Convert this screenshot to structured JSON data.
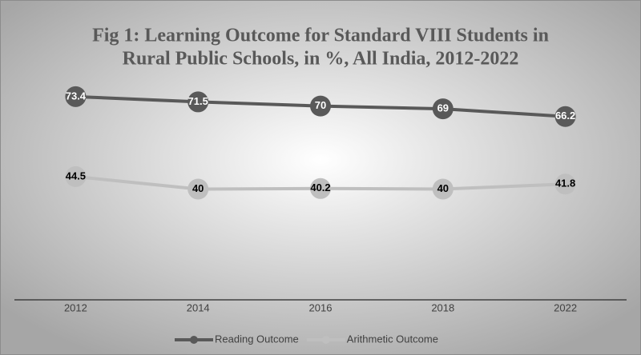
{
  "chart_data": {
    "type": "line",
    "title": [
      "Fig 1: Learning Outcome for Standard VIII Students in",
      "Rural Public Schools, in %, All India, 2012-2022"
    ],
    "categories": [
      "2012",
      "2014",
      "2016",
      "2018",
      "2022"
    ],
    "series": [
      {
        "name": "Reading Outcome",
        "color": "#595959",
        "label_color": "#ffffff",
        "values": [
          73.4,
          71.5,
          70,
          69,
          66.2
        ]
      },
      {
        "name": "Arithmetic Outcome",
        "color": "#bfbfbf",
        "label_color": "#000000",
        "values": [
          44.5,
          40,
          40.2,
          40,
          41.8
        ]
      }
    ],
    "ylim": [
      0,
      80
    ],
    "legend": "bottom"
  }
}
